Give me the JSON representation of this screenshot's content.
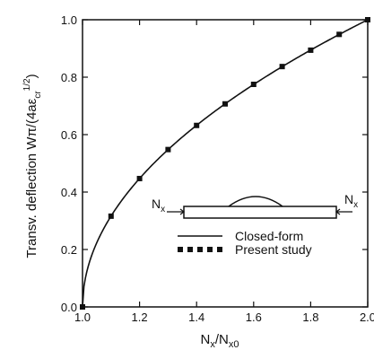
{
  "chart_data": {
    "type": "line",
    "title": "",
    "xlabel": "N_x/N_x0",
    "ylabel": "Transv. deflection Wπ/(4aε_cr^1/2)",
    "xlim": [
      1.0,
      2.0
    ],
    "ylim": [
      0.0,
      1.0
    ],
    "xticks": [
      "1.0",
      "1.2",
      "1.4",
      "1.6",
      "1.8",
      "2.0"
    ],
    "yticks": [
      "0.0",
      "0.2",
      "0.4",
      "0.6",
      "0.8",
      "1.0"
    ],
    "grid": false,
    "legend_position": "lower-right",
    "inset_label_left": "N",
    "inset_label_right": "N",
    "inset_subscript": "x",
    "series": [
      {
        "name": "Closed-form",
        "style": "solid",
        "formula": "sqrt(x - 1)"
      },
      {
        "name": "Present study",
        "style": "markers",
        "x": [
          1.0,
          1.1,
          1.2,
          1.3,
          1.4,
          1.5,
          1.6,
          1.7,
          1.8,
          1.9,
          2.0
        ],
        "y": [
          0.0,
          0.316,
          0.447,
          0.548,
          0.632,
          0.707,
          0.775,
          0.837,
          0.894,
          0.949,
          1.0
        ]
      }
    ],
    "colors": {
      "line": "#111111",
      "marker": "#111111"
    }
  }
}
